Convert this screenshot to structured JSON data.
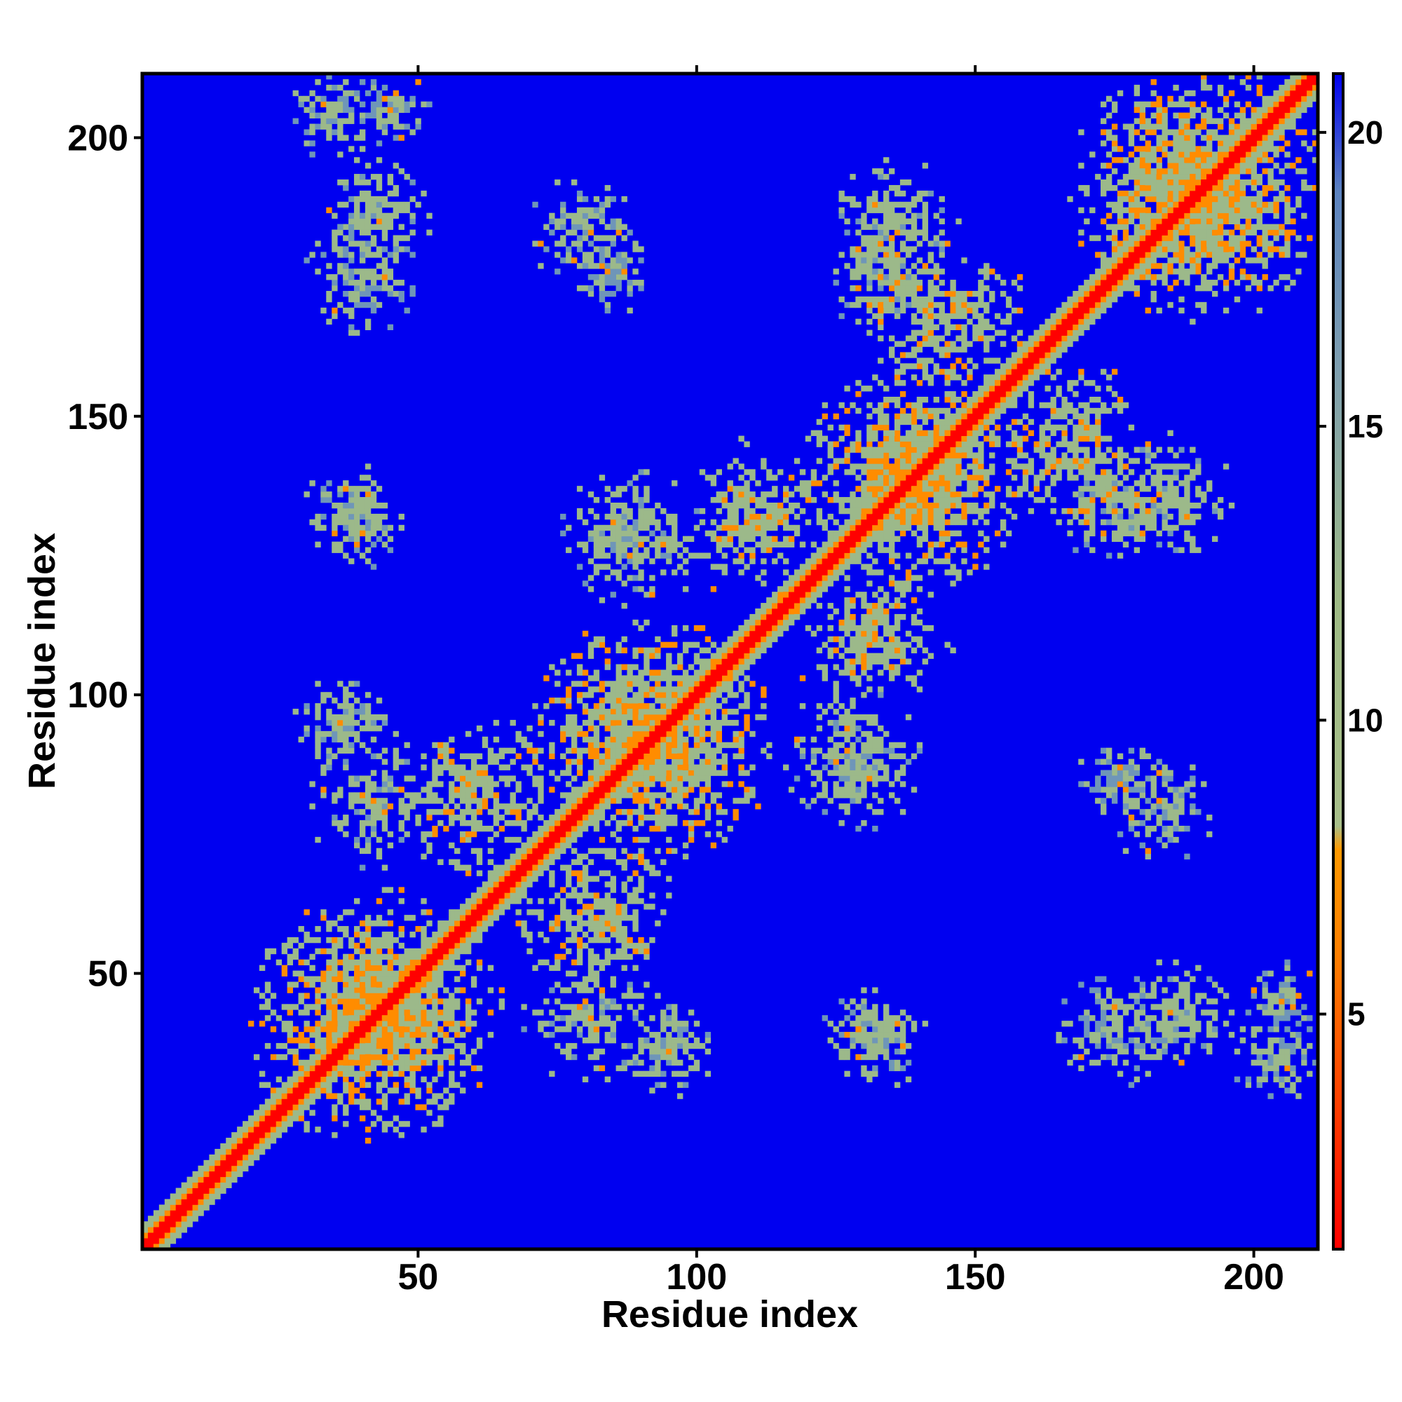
{
  "chart_data": {
    "type": "heatmap",
    "title": "",
    "xlabel": "Residue index",
    "ylabel": "Residue index",
    "n_residues": 211,
    "xlim": [
      1,
      211
    ],
    "ylim": [
      1,
      211
    ],
    "x_ticks": [
      50,
      100,
      150,
      200
    ],
    "y_ticks": [
      50,
      100,
      150,
      200
    ],
    "colorbar": {
      "range": [
        1,
        21
      ],
      "ticks": [
        5,
        10,
        15,
        20
      ],
      "placement": "right"
    },
    "color_scale": {
      "low": "#ff0000",
      "mid_low": "#ff8c00",
      "mid": "#9cb98a",
      "high": "#6f96b8",
      "background": "#0000f0"
    },
    "diagonal_band_value": 2,
    "background_value": 21,
    "contact_clusters": [
      {
        "x": 42,
        "y": 42,
        "spread": 16,
        "value": 9
      },
      {
        "x": 92,
        "y": 92,
        "spread": 15,
        "value": 9
      },
      {
        "x": 140,
        "y": 140,
        "spread": 14,
        "value": 9
      },
      {
        "x": 190,
        "y": 190,
        "spread": 16,
        "value": 9
      },
      {
        "x": 110,
        "y": 132,
        "spread": 10,
        "value": 10
      },
      {
        "x": 145,
        "y": 168,
        "spread": 10,
        "value": 10
      },
      {
        "x": 60,
        "y": 82,
        "spread": 10,
        "value": 10
      },
      {
        "x": 128,
        "y": 88,
        "spread": 9,
        "value": 11
      },
      {
        "x": 135,
        "y": 185,
        "spread": 8,
        "value": 11
      },
      {
        "x": 42,
        "y": 186,
        "spread": 7,
        "value": 11
      },
      {
        "x": 35,
        "y": 205,
        "spread": 6,
        "value": 12
      },
      {
        "x": 80,
        "y": 183,
        "spread": 7,
        "value": 12
      },
      {
        "x": 38,
        "y": 133,
        "spread": 6,
        "value": 12
      },
      {
        "x": 38,
        "y": 95,
        "spread": 7,
        "value": 11
      },
      {
        "x": 80,
        "y": 42,
        "spread": 8,
        "value": 11
      },
      {
        "x": 175,
        "y": 135,
        "spread": 8,
        "value": 11
      },
      {
        "x": 130,
        "y": 40,
        "spread": 5,
        "value": 12
      },
      {
        "x": 175,
        "y": 40,
        "spread": 7,
        "value": 12
      },
      {
        "x": 175,
        "y": 85,
        "spread": 5,
        "value": 13
      },
      {
        "x": 205,
        "y": 45,
        "spread": 5,
        "value": 13
      }
    ]
  }
}
